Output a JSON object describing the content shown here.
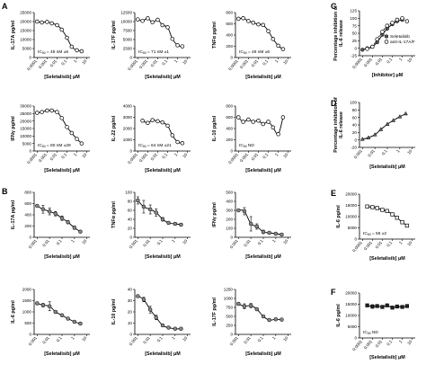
{
  "panel_labels": [
    "A",
    "B",
    "C",
    "D",
    "E",
    "F"
  ],
  "chart_data": [
    {
      "id": "A1",
      "type": "scatter",
      "xlabel": "[Seletalisib] μM",
      "ylabel": "IL-17A pg/ml",
      "xticks": [
        "0.0001",
        "0.001",
        "0.01",
        "0.1",
        "1",
        "10"
      ],
      "yticks": [
        "0",
        "5000",
        "10000",
        "15000",
        "20000",
        "25000"
      ],
      "ylim": [
        0,
        25000
      ],
      "annotation": "IC50 = 46 nM ±6",
      "x": [
        0.0001,
        0.0003,
        0.001,
        0.003,
        0.01,
        0.03,
        0.1,
        0.3,
        1,
        3
      ],
      "y": [
        20000,
        19500,
        19800,
        19000,
        18000,
        15500,
        11000,
        6000,
        4000,
        3500
      ]
    },
    {
      "id": "A2",
      "type": "scatter",
      "xlabel": "[Seletalisib] μM",
      "ylabel": "IL-17F pg/ml",
      "xticks": [
        "0.0001",
        "0.001",
        "0.01",
        "0.1",
        "1",
        "10"
      ],
      "yticks": [
        "0",
        "2500",
        "5000",
        "7500",
        "10000",
        "12500"
      ],
      "ylim": [
        0,
        12500
      ],
      "annotation": "IC50 = 71 nM ±1",
      "x": [
        0.0001,
        0.0003,
        0.001,
        0.003,
        0.01,
        0.03,
        0.1,
        0.3,
        1,
        3
      ],
      "y": [
        10600,
        10200,
        10900,
        9800,
        10500,
        9000,
        8400,
        5200,
        3400,
        3100
      ]
    },
    {
      "id": "A3",
      "type": "scatter",
      "xlabel": "[Seletalisib] μM",
      "ylabel": "TNFα pg/ml",
      "xticks": [
        "0.0001",
        "0.001",
        "0.01",
        "0.1",
        "1",
        "10"
      ],
      "yticks": [
        "0",
        "200",
        "400",
        "600",
        "800"
      ],
      "ylim": [
        0,
        800
      ],
      "annotation": "IC50 = 48 nM ±6",
      "x": [
        0.0001,
        0.0003,
        0.001,
        0.003,
        0.01,
        0.03,
        0.1,
        0.3,
        1,
        3
      ],
      "y": [
        690,
        700,
        650,
        620,
        590,
        580,
        470,
        330,
        210,
        150
      ]
    },
    {
      "id": "A4",
      "type": "scatter",
      "xlabel": "[Seletalisib] μM",
      "ylabel": "IFNγ pg/ml",
      "xticks": [
        "0.0001",
        "0.001",
        "0.01",
        "0.1",
        "1",
        "10"
      ],
      "yticks": [
        "0",
        "5000",
        "10000",
        "15000",
        "20000",
        "25000",
        "30000"
      ],
      "ylim": [
        0,
        30000
      ],
      "annotation": "IC50 = 80 nM ±29",
      "x": [
        0.0001,
        0.0003,
        0.001,
        0.003,
        0.01,
        0.03,
        0.1,
        0.3,
        1,
        3
      ],
      "y": [
        25500,
        26000,
        27000,
        27000,
        26000,
        22000,
        16000,
        12000,
        8000,
        5000
      ]
    },
    {
      "id": "A5",
      "type": "scatter",
      "xlabel": "[Seletalisib] μM",
      "ylabel": "IL-22 pg/ml",
      "xticks": [
        "0.0001",
        "0.001",
        "0.01",
        "0.1",
        "1",
        "10"
      ],
      "yticks": [
        "0",
        "1000",
        "2000",
        "3000",
        "4000"
      ],
      "ylim": [
        0,
        4000
      ],
      "annotation": "IC50 = 64 nM ±21",
      "x": [
        0.0003,
        0.001,
        0.003,
        0.01,
        0.03,
        0.1,
        0.3,
        1,
        3
      ],
      "y": [
        2700,
        2500,
        2750,
        2650,
        2550,
        2250,
        1400,
        800,
        700
      ]
    },
    {
      "id": "A6",
      "type": "scatter",
      "xlabel": "[Seletalisib] μM",
      "ylabel": "IL-10 pg/ml",
      "xticks": [
        "0.0001",
        "0.001",
        "0.01",
        "0.1",
        "1",
        "10"
      ],
      "yticks": [
        "0",
        "200",
        "400",
        "600",
        "800"
      ],
      "ylim": [
        0,
        800
      ],
      "annotation": "IC50 ND",
      "x": [
        0.0001,
        0.0003,
        0.001,
        0.003,
        0.01,
        0.03,
        0.1,
        0.3,
        1,
        3
      ],
      "y": [
        600,
        520,
        560,
        520,
        540,
        480,
        520,
        420,
        300,
        600
      ]
    },
    {
      "id": "B1",
      "type": "line",
      "xlabel": "[Seletalisib] μM",
      "ylabel": "IL-17A pg/ml",
      "xticks": [
        "0.001",
        "0.01",
        "0.1",
        "1",
        "10"
      ],
      "yticks": [
        "0",
        "200",
        "400",
        "600",
        "800"
      ],
      "ylim": [
        0,
        800
      ],
      "x": [
        0.001,
        0.003,
        0.01,
        0.03,
        0.1,
        0.3,
        1,
        3
      ],
      "y": [
        560,
        500,
        460,
        420,
        340,
        270,
        170,
        100
      ],
      "err": [
        0,
        70,
        60,
        40,
        40,
        30,
        30,
        20
      ]
    },
    {
      "id": "B2",
      "type": "line",
      "xlabel": "[Seletalisib] μM",
      "ylabel": "TNFα pg/ml",
      "xticks": [
        "0.001",
        "0.01",
        "0.1",
        "1",
        "10"
      ],
      "yticks": [
        "0",
        "20",
        "40",
        "60",
        "80",
        "100"
      ],
      "ylim": [
        0,
        100
      ],
      "x": [
        0.001,
        0.003,
        0.01,
        0.03,
        0.1,
        0.3,
        1,
        3
      ],
      "y": [
        82,
        68,
        62,
        55,
        40,
        32,
        30,
        28
      ],
      "err": [
        8,
        14,
        10,
        8,
        4,
        3,
        3,
        3
      ]
    },
    {
      "id": "B3",
      "type": "line",
      "xlabel": "[Seletalisib] μM",
      "ylabel": "IFNγ pg/ml",
      "xticks": [
        "0.001",
        "0.01",
        "0.1",
        "1",
        "10"
      ],
      "yticks": [
        "0",
        "100",
        "200",
        "300",
        "400",
        "500"
      ],
      "ylim": [
        0,
        500
      ],
      "x": [
        0.001,
        0.003,
        0.01,
        0.03,
        0.1,
        0.3,
        1,
        3
      ],
      "y": [
        300,
        290,
        150,
        120,
        60,
        50,
        40,
        30
      ],
      "err": [
        0,
        40,
        80,
        30,
        20,
        10,
        10,
        10
      ]
    },
    {
      "id": "B4",
      "type": "line",
      "xlabel": "[Seletalisib] μM",
      "ylabel": "IL-6 pg/ml",
      "xticks": [
        "0.001",
        "0.01",
        "0.1",
        "1",
        "10"
      ],
      "yticks": [
        "0",
        "500",
        "1000",
        "1500",
        "2000"
      ],
      "ylim": [
        0,
        2000
      ],
      "x": [
        0.001,
        0.003,
        0.01,
        0.03,
        0.1,
        0.3,
        1,
        3
      ],
      "y": [
        1380,
        1300,
        1250,
        1000,
        850,
        700,
        560,
        480
      ],
      "err": [
        60,
        80,
        200,
        60,
        50,
        40,
        30,
        30
      ]
    },
    {
      "id": "B5",
      "type": "line",
      "xlabel": "[Seletalisib] μM",
      "ylabel": "IL-10 pg/ml",
      "xticks": [
        "0.001",
        "0.01",
        "0.1",
        "1",
        "10"
      ],
      "yticks": [
        "0",
        "10",
        "20",
        "30",
        "40"
      ],
      "ylim": [
        0,
        40
      ],
      "x": [
        0.001,
        0.003,
        0.01,
        0.03,
        0.1,
        0.3,
        1,
        3
      ],
      "y": [
        34,
        31,
        22,
        15,
        8,
        6,
        5,
        5
      ],
      "err": [
        1,
        2,
        3,
        2,
        1,
        1,
        1,
        1
      ]
    },
    {
      "id": "B6",
      "type": "line",
      "xlabel": "[Seletalisib] μM",
      "ylabel": "IL-17F pg/ml",
      "xticks": [
        "0.001",
        "0.01",
        "0.1",
        "1",
        "10"
      ],
      "yticks": [
        "0",
        "250",
        "500",
        "750",
        "1000",
        "1250"
      ],
      "ylim": [
        0,
        1250
      ],
      "x": [
        0.001,
        0.003,
        0.01,
        0.03,
        0.1,
        0.3,
        1,
        3
      ],
      "y": [
        850,
        780,
        800,
        700,
        500,
        400,
        420,
        410
      ],
      "err": [
        40,
        70,
        60,
        40,
        30,
        30,
        30,
        30
      ]
    },
    {
      "id": "C",
      "type": "scatter",
      "xlabel": "[Inhibitor] μM",
      "ylabel": "Percentage inhibition of IL-6 release",
      "xticks": [
        "0.0001",
        "0.001",
        "0.01",
        "0.1",
        "1",
        "10"
      ],
      "yticks": [
        "-25",
        "0",
        "25",
        "50",
        "75",
        "100",
        "125"
      ],
      "ylim": [
        -25,
        125
      ],
      "series": [
        {
          "name": "Seletalisib",
          "marker": "filled",
          "x": [
            0.0001,
            0.0003,
            0.001,
            0.003,
            0.01,
            0.03,
            0.1,
            0.3,
            1
          ],
          "y": [
            -5,
            0,
            5,
            20,
            45,
            65,
            80,
            90,
            95
          ]
        },
        {
          "name": "anti-IL-17A/F",
          "marker": "open",
          "x": [
            0.0003,
            0.001,
            0.003,
            0.01,
            0.03,
            0.1,
            0.3,
            1,
            3
          ],
          "y": [
            -2,
            5,
            30,
            55,
            75,
            85,
            95,
            100,
            90
          ]
        }
      ]
    },
    {
      "id": "D",
      "type": "line",
      "xlabel": "[Seletalisib] μM",
      "ylabel": "Percentage inhibition of IL-6 release",
      "xticks": [
        "0.001",
        "0.01",
        "0.1",
        "1",
        "10"
      ],
      "yticks": [
        "-20",
        "0",
        "20",
        "40",
        "60",
        "80",
        "100"
      ],
      "ylim": [
        -20,
        100
      ],
      "x": [
        0.001,
        0.003,
        0.01,
        0.03,
        0.1,
        0.3,
        1,
        3
      ],
      "y": [
        2,
        6,
        14,
        28,
        42,
        52,
        62,
        70
      ]
    },
    {
      "id": "E",
      "type": "scatter",
      "xlabel": "[Seletalisib] μM",
      "ylabel": "IL-6 pg/ml",
      "xticks": [
        "0.0001",
        "0.001",
        "0.01",
        "0.1",
        "1",
        "10"
      ],
      "yticks": [
        "0",
        "5000",
        "10000",
        "15000",
        "20000"
      ],
      "ylim": [
        0,
        20000
      ],
      "annotation": "IC50 = 56 ±2",
      "x": [
        0.0003,
        0.001,
        0.003,
        0.01,
        0.03,
        0.1,
        0.3,
        1,
        3
      ],
      "y": [
        14500,
        14200,
        13800,
        13000,
        12500,
        11000,
        9500,
        7500,
        6000
      ]
    },
    {
      "id": "F",
      "type": "scatter",
      "xlabel": "[Seletalisib] μM",
      "ylabel": "IL-6 pg/ml",
      "xticks": [
        "0.0001",
        "0.001",
        "0.01",
        "0.1",
        "1",
        "10"
      ],
      "yticks": [
        "0",
        "5000",
        "10000",
        "15000",
        "20000"
      ],
      "ylim": [
        0,
        20000
      ],
      "annotation": "IC50 ND",
      "x": [
        0.0003,
        0.001,
        0.003,
        0.01,
        0.03,
        0.1,
        0.3,
        1,
        3
      ],
      "y": [
        14500,
        14000,
        14200,
        13800,
        14500,
        13500,
        14000,
        13800,
        14200
      ],
      "err": [
        500,
        800,
        600,
        700,
        500,
        600,
        500,
        600,
        500
      ]
    }
  ]
}
